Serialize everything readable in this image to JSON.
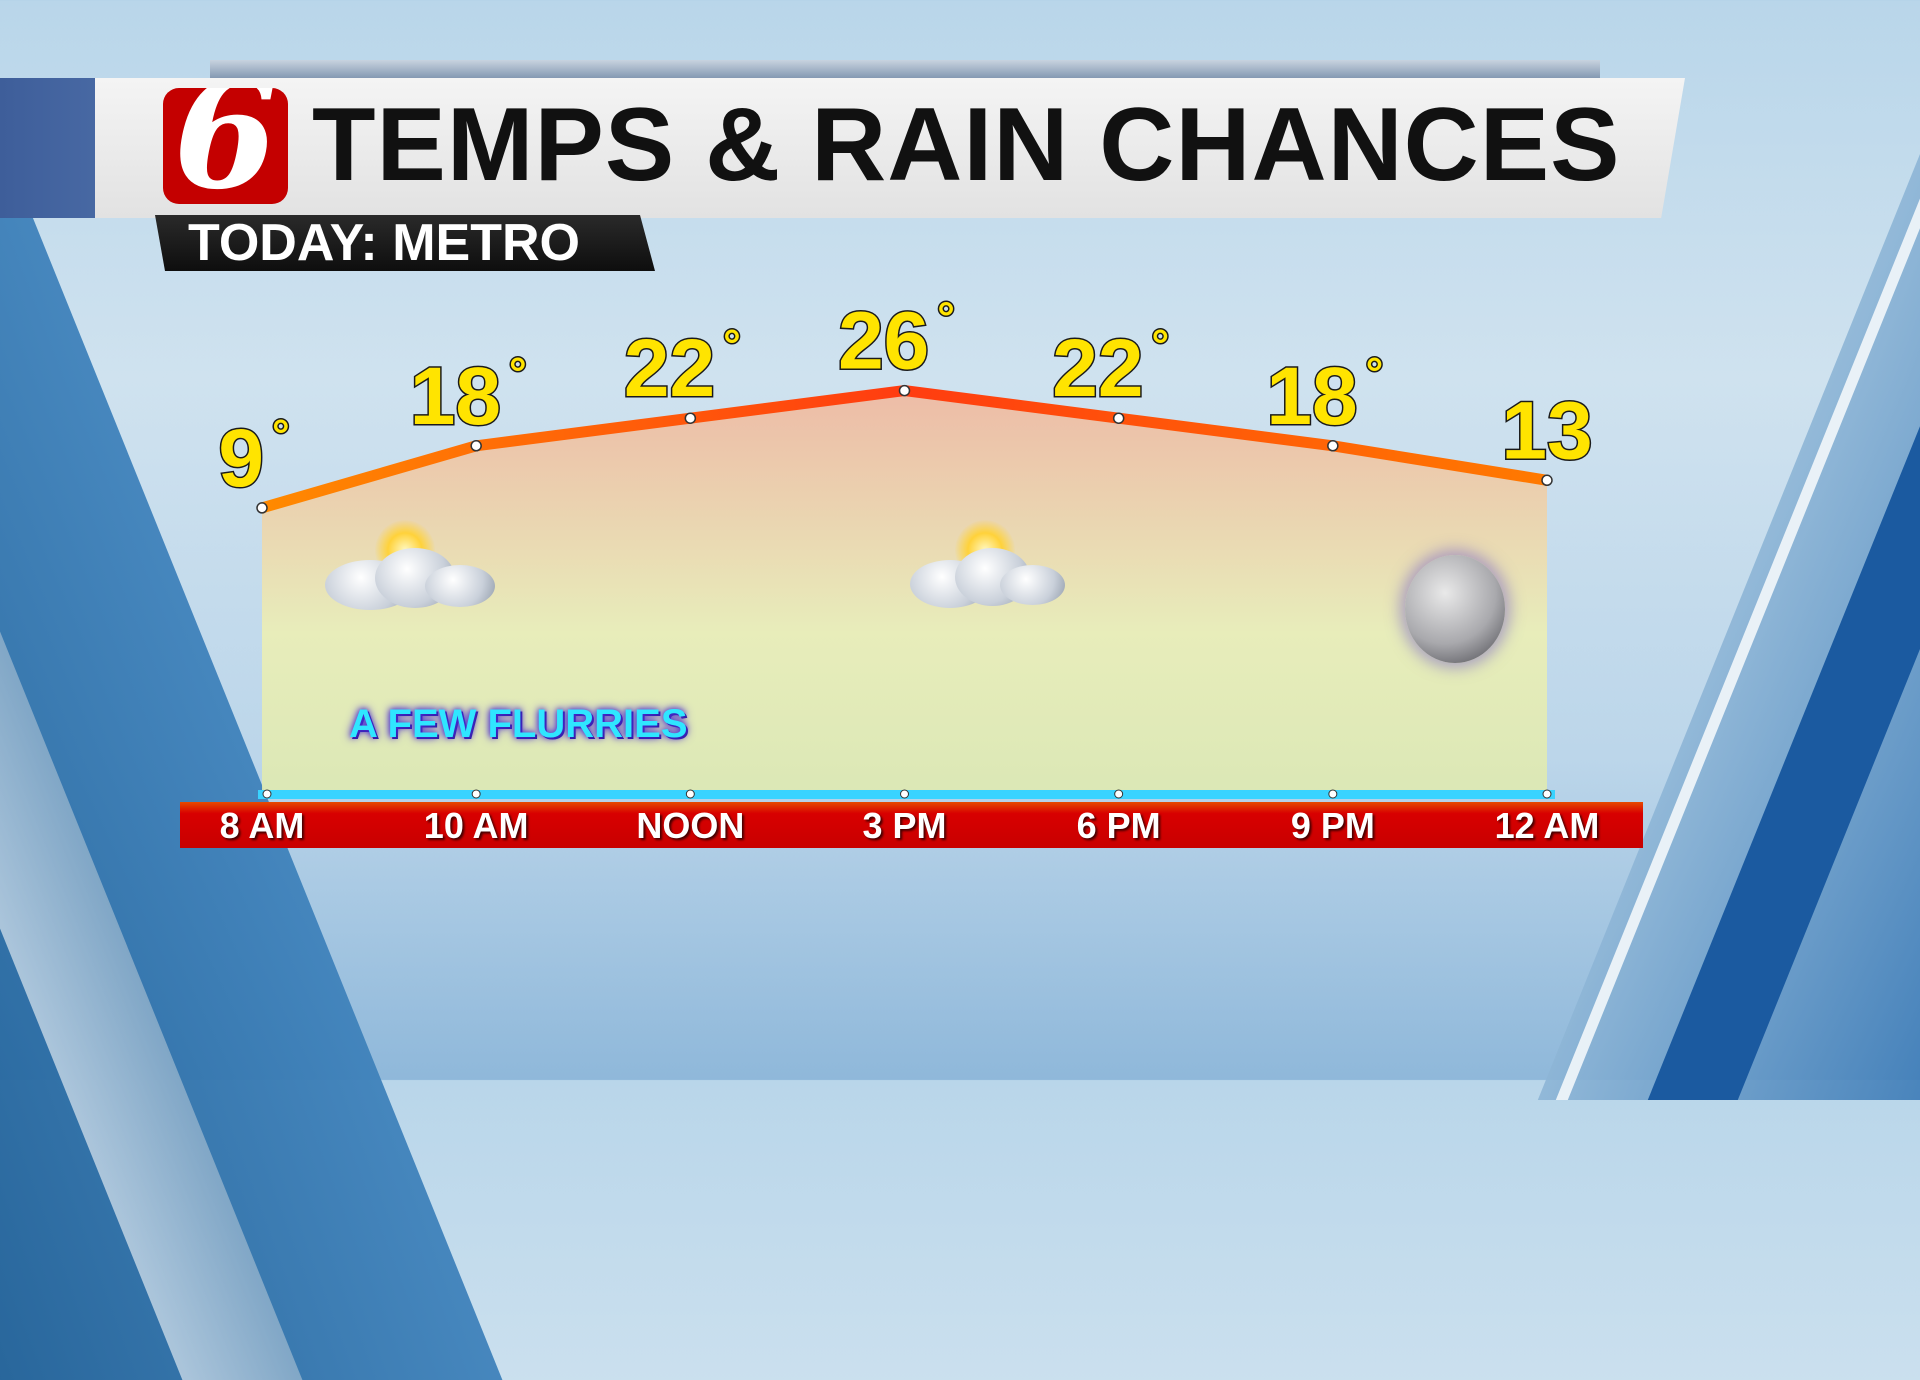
{
  "header": {
    "logo_text": "6",
    "title": "TEMPS & RAIN CHANCES",
    "subtitle": "TODAY: METRO"
  },
  "colors": {
    "line": "#ff5a00",
    "temp_label": "#ffe400",
    "time_bar": "#d40000",
    "baseline": "#39d3ff",
    "logo": "#c40000"
  },
  "chart_data": {
    "type": "line",
    "categories": [
      "8 AM",
      "10 AM",
      "NOON",
      "3 PM",
      "6 PM",
      "9 PM",
      "12 AM"
    ],
    "values": [
      9,
      18,
      22,
      26,
      22,
      18,
      13
    ],
    "data_labels": [
      "9",
      "18",
      "22",
      "26",
      "22",
      "18",
      "13"
    ],
    "degree_shown": [
      true,
      true,
      true,
      true,
      true,
      true,
      false
    ],
    "degree_symbol": "°",
    "annotation": "A FEW FLURRIES",
    "icons": [
      {
        "category": "10 AM",
        "name": "partly-cloudy-icon"
      },
      {
        "category": "3 PM",
        "name": "partly-cloudy-icon"
      },
      {
        "category": "12 AM",
        "name": "moon-icon"
      }
    ]
  }
}
